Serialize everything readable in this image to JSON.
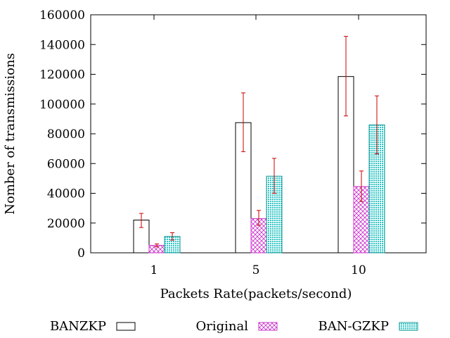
{
  "chart_data": {
    "type": "bar",
    "title": "",
    "xlabel": "Packets Rate(packets/second)",
    "ylabel": "Nomber of transmissions",
    "categories": [
      "1",
      "5",
      "10"
    ],
    "ylim": [
      0,
      160000
    ],
    "yticks": [
      0,
      20000,
      40000,
      60000,
      80000,
      100000,
      120000,
      140000,
      160000
    ],
    "ytick_labels": [
      "0",
      "20000",
      "40000",
      "60000",
      "80000",
      "100000",
      "120000",
      "140000",
      "160000"
    ],
    "grid": false,
    "legend_position": "bottom",
    "series": [
      {
        "name": "BANZKP",
        "pattern": "empty",
        "color": "#000000",
        "values": [
          22000,
          87500,
          118500
        ],
        "error_low": [
          17000,
          68000,
          92000
        ],
        "error_high": [
          26500,
          107500,
          145500
        ]
      },
      {
        "name": "Original",
        "pattern": "crosshatch",
        "color": "#cc33cc",
        "values": [
          5000,
          23000,
          44500
        ],
        "error_low": [
          4000,
          18500,
          34500
        ],
        "error_high": [
          6000,
          28500,
          55000
        ]
      },
      {
        "name": "BAN-GZKP",
        "pattern": "dots",
        "color": "#33cccc",
        "values": [
          11000,
          51500,
          86000
        ],
        "error_low": [
          8500,
          40000,
          66500
        ],
        "error_high": [
          13500,
          63500,
          105500
        ]
      }
    ],
    "error_bar_color": "#cc0000"
  }
}
